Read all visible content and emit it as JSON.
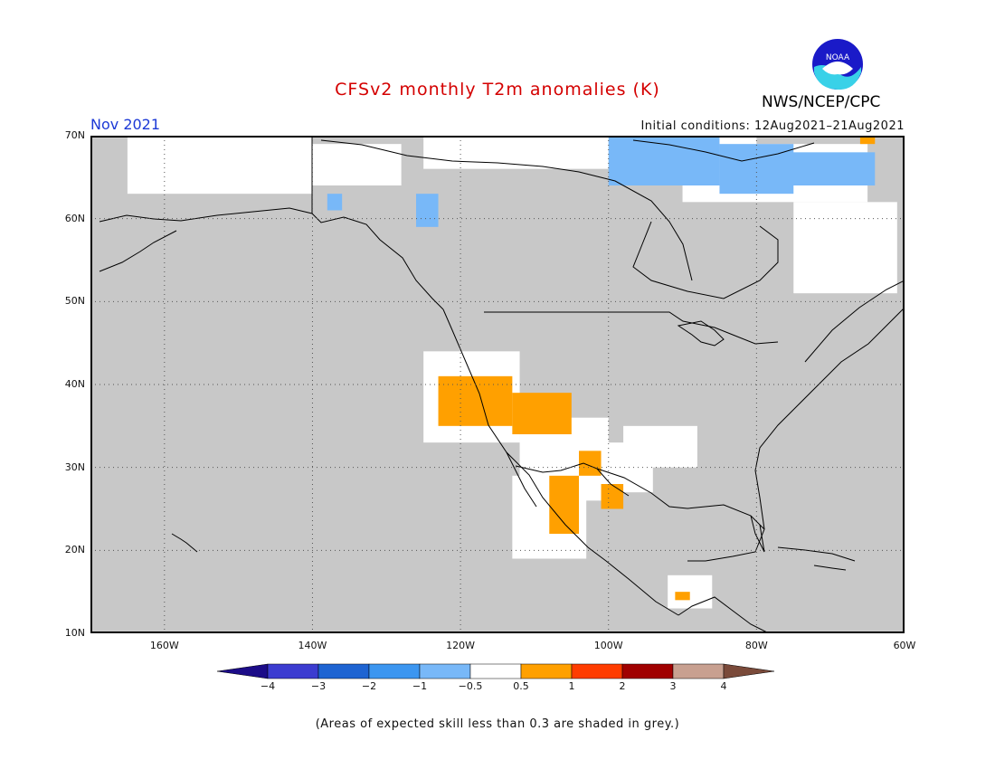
{
  "title": "CFSv2 monthly T2m anomalies (K)",
  "period": "Nov 2021",
  "initial_conditions": "Initial conditions: 12Aug2021–21Aug2021",
  "agency": "NWS/NCEP/CPC",
  "logo_text": "NOAA",
  "footnote": "(Areas of expected skill less than 0.3 are shaded in grey.)",
  "map": {
    "lon_range": [
      -170,
      -60
    ],
    "lat_range": [
      10,
      70
    ],
    "lat_ticks": [
      "70N",
      "60N",
      "50N",
      "40N",
      "30N",
      "20N",
      "10N"
    ],
    "lat_values": [
      70,
      60,
      50,
      40,
      30,
      20,
      10
    ],
    "lon_ticks": [
      "160W",
      "140W",
      "120W",
      "100W",
      "80W",
      "60W"
    ],
    "lon_values": [
      -160,
      -140,
      -120,
      -100,
      -80,
      -60
    ],
    "grid": true,
    "background_color": "#c8c8c8",
    "neutral_regions": [
      {
        "name": "alaska-north-neutral",
        "lon": [
          -165,
          -140
        ],
        "lat": [
          63,
          70
        ]
      },
      {
        "name": "yukon-neutral",
        "lon": [
          -140,
          -128
        ],
        "lat": [
          64,
          69
        ]
      },
      {
        "name": "canada-north-neutral",
        "lon": [
          -125,
          -80
        ],
        "lat": [
          66,
          70
        ]
      },
      {
        "name": "greenland-south-neutral",
        "lon": [
          -90,
          -65
        ],
        "lat": [
          62,
          69
        ]
      },
      {
        "name": "quebec-neutral",
        "lon": [
          -75,
          -61
        ],
        "lat": [
          51,
          62
        ]
      },
      {
        "name": "us-west-neutral",
        "lon": [
          -125,
          -112
        ],
        "lat": [
          33,
          44
        ]
      },
      {
        "name": "southwest-neutral",
        "lon": [
          -112,
          -100
        ],
        "lat": [
          26,
          36
        ]
      },
      {
        "name": "mexico-neutral",
        "lon": [
          -113,
          -103
        ],
        "lat": [
          19,
          29
        ]
      },
      {
        "name": "texas-neutral",
        "lon": [
          -104,
          -94
        ],
        "lat": [
          27,
          33
        ]
      },
      {
        "name": "gulf-coast-neutral",
        "lon": [
          -98,
          -88
        ],
        "lat": [
          30,
          35
        ]
      },
      {
        "name": "central-america-neutral",
        "lon": [
          -92,
          -86
        ],
        "lat": [
          13,
          17
        ]
      }
    ],
    "cool_regions": [
      {
        "name": "arctic-islands-cool",
        "lon": [
          -100,
          -85
        ],
        "lat": [
          64,
          70
        ]
      },
      {
        "name": "baffin-cool",
        "lon": [
          -85,
          -75
        ],
        "lat": [
          63,
          69
        ]
      },
      {
        "name": "greenland-cool",
        "lon": [
          -78,
          -64
        ],
        "lat": [
          64,
          68
        ]
      },
      {
        "name": "yukon-cool",
        "lon": [
          -138,
          -136
        ],
        "lat": [
          61,
          63
        ]
      },
      {
        "name": "nwt-cool",
        "lon": [
          -126,
          -123
        ],
        "lat": [
          59,
          63
        ]
      }
    ],
    "warm_regions": [
      {
        "name": "great-basin-warm",
        "lon": [
          -123,
          -113
        ],
        "lat": [
          35,
          41
        ]
      },
      {
        "name": "four-corners-warm",
        "lon": [
          -113,
          -105
        ],
        "lat": [
          34,
          39
        ]
      },
      {
        "name": "texas-warm",
        "lon": [
          -104,
          -101
        ],
        "lat": [
          29,
          32
        ]
      },
      {
        "name": "sierra-madre-warm",
        "lon": [
          -108,
          -104
        ],
        "lat": [
          22,
          29
        ]
      },
      {
        "name": "tamaulipas-warm",
        "lon": [
          -101,
          -98
        ],
        "lat": [
          25,
          28
        ]
      },
      {
        "name": "guatemala-warm",
        "lon": [
          -91,
          -89
        ],
        "lat": [
          14,
          15
        ]
      },
      {
        "name": "greenland-edge-warm",
        "lon": [
          -66,
          -64
        ],
        "lat": [
          69,
          70
        ]
      }
    ]
  },
  "colorbar": {
    "labels": [
      "−4",
      "−3",
      "−2",
      "−1",
      "−0.5",
      "0.5",
      "1",
      "2",
      "3",
      "4"
    ],
    "colors": [
      "#1c0c88",
      "#3c3cd0",
      "#1e64d2",
      "#3c96f0",
      "#78b8f8",
      "#ffffff",
      "#ffa000",
      "#ff3c00",
      "#a00000",
      "#c8a090",
      "#7a4a3a"
    ]
  }
}
